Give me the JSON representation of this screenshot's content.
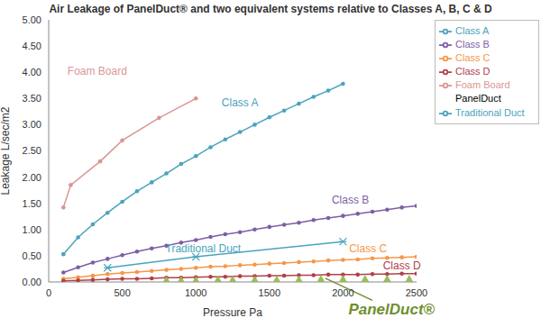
{
  "chart_data": {
    "type": "line",
    "title": "Air Leakage of PanelDuct® and two equivalent systems relative to Classes A, B, C & D",
    "x_label": "Pressure Pa",
    "y_label": "Leakage L/sec/m2",
    "xlim": [
      0,
      2500
    ],
    "xticks": [
      0,
      500,
      1000,
      1500,
      2000,
      2500
    ],
    "ylim": [
      0,
      5
    ],
    "yticks": [
      {
        "value": 0,
        "label": "0.00"
      },
      {
        "value": 0.5,
        "label": "0.50"
      },
      {
        "value": 1,
        "label": "1.00"
      },
      {
        "value": 1.5,
        "label": "1.50"
      },
      {
        "value": 2,
        "label": "2.00"
      },
      {
        "value": 2.5,
        "label": "2.50"
      },
      {
        "value": 3,
        "label": "3.00"
      },
      {
        "value": 3.5,
        "label": "3.50"
      },
      {
        "value": 4,
        "label": "4.00"
      },
      {
        "value": 4.5,
        "label": "4.50"
      },
      {
        "value": 5,
        "label": "5.00"
      }
    ],
    "grid": false,
    "legend": "upper right",
    "series": [
      {
        "name": "Class A",
        "color": "#4aa3bd",
        "marker": "circle",
        "line_style": "solid",
        "x": [
          100,
          200,
          300,
          400,
          500,
          600,
          700,
          800,
          900,
          1000,
          1100,
          1200,
          1300,
          1400,
          1500,
          1600,
          1700,
          1800,
          1900,
          2000
        ],
        "values": [
          0.53,
          0.85,
          1.1,
          1.32,
          1.53,
          1.73,
          1.9,
          2.07,
          2.25,
          2.4,
          2.57,
          2.72,
          2.86,
          3.0,
          3.14,
          3.27,
          3.4,
          3.53,
          3.65,
          3.78
        ]
      },
      {
        "name": "Class B",
        "color": "#7d5fa5",
        "marker": "circle",
        "line_style": "solid",
        "x": [
          100,
          200,
          300,
          400,
          500,
          600,
          700,
          800,
          900,
          1000,
          1100,
          1200,
          1300,
          1400,
          1500,
          1600,
          1700,
          1800,
          1900,
          2000,
          2100,
          2200,
          2300,
          2400,
          2500
        ],
        "values": [
          0.18,
          0.28,
          0.37,
          0.44,
          0.51,
          0.58,
          0.64,
          0.69,
          0.75,
          0.8,
          0.86,
          0.91,
          0.95,
          1.0,
          1.05,
          1.09,
          1.13,
          1.18,
          1.22,
          1.26,
          1.3,
          1.34,
          1.38,
          1.42,
          1.45
        ]
      },
      {
        "name": "Class C",
        "color": "#f79646",
        "marker": "circle",
        "line_style": "solid",
        "x": [
          100,
          200,
          300,
          400,
          500,
          600,
          700,
          800,
          900,
          1000,
          1100,
          1200,
          1300,
          1400,
          1500,
          1600,
          1700,
          1800,
          1900,
          2000,
          2100,
          2200,
          2300,
          2400,
          2500
        ],
        "values": [
          0.06,
          0.09,
          0.12,
          0.15,
          0.17,
          0.19,
          0.21,
          0.23,
          0.25,
          0.27,
          0.29,
          0.3,
          0.32,
          0.33,
          0.35,
          0.36,
          0.38,
          0.39,
          0.41,
          0.42,
          0.43,
          0.45,
          0.46,
          0.47,
          0.48
        ]
      },
      {
        "name": "Class D",
        "color": "#b0404a",
        "marker": "circle",
        "line_style": "solid",
        "x": [
          100,
          200,
          300,
          400,
          500,
          600,
          700,
          800,
          900,
          1000,
          1100,
          1200,
          1300,
          1400,
          1500,
          1600,
          1700,
          1800,
          1900,
          2000,
          2100,
          2200,
          2300,
          2400,
          2500
        ],
        "values": [
          0.02,
          0.03,
          0.04,
          0.05,
          0.06,
          0.06,
          0.07,
          0.08,
          0.08,
          0.09,
          0.1,
          0.1,
          0.11,
          0.11,
          0.12,
          0.12,
          0.13,
          0.13,
          0.14,
          0.14,
          0.14,
          0.15,
          0.15,
          0.16,
          0.16
        ]
      },
      {
        "name": "Foam Board",
        "color": "#d99694",
        "marker": "circle",
        "line_style": "solid",
        "x": [
          100,
          150,
          350,
          500,
          750,
          1000
        ],
        "values": [
          1.42,
          1.85,
          2.3,
          2.7,
          3.13,
          3.5
        ]
      },
      {
        "name": "Traditional Duct",
        "color": "#4aa3bd",
        "marker": "star",
        "line_style": "solid",
        "x": [
          400,
          1000,
          2000
        ],
        "values": [
          0.27,
          0.48,
          0.77
        ]
      },
      {
        "name": "PanelDuct",
        "color": "#9bbb59",
        "marker": "triangle",
        "line_style": "none",
        "x": [
          800,
          900,
          1000,
          1150,
          1250,
          1400,
          1550,
          1700,
          1850,
          2000,
          2150,
          2300,
          2450
        ],
        "values": [
          0.03,
          0.03,
          0.03,
          0.04,
          0.04,
          0.04,
          0.04,
          0.04,
          0.05,
          0.05,
          0.05,
          0.05,
          0.05
        ]
      }
    ],
    "annotations": [
      {
        "text": "Foam Board",
        "x": 330,
        "y": 4.0,
        "color": "#d99694"
      },
      {
        "text": "Class A",
        "x": 1300,
        "y": 3.4,
        "color": "#4aa3bd"
      },
      {
        "text": "Class B",
        "x": 2050,
        "y": 1.55,
        "color": "#7d5fa5"
      },
      {
        "text": "Traditional Duct",
        "x": 1050,
        "y": 0.62,
        "color": "#4aa3bd"
      },
      {
        "text": "Class C",
        "x": 2170,
        "y": 0.62,
        "color": "#f79646"
      },
      {
        "text": "Class D",
        "x": 2400,
        "y": 0.3,
        "color": "#b0404a"
      },
      {
        "text": "PanelDuct®",
        "x": 2330,
        "y": -0.55,
        "color": "#6f8f2f",
        "arrow": {
          "from": [
            2200,
            -0.35
          ],
          "to": [
            1880,
            0.07
          ]
        }
      }
    ]
  }
}
